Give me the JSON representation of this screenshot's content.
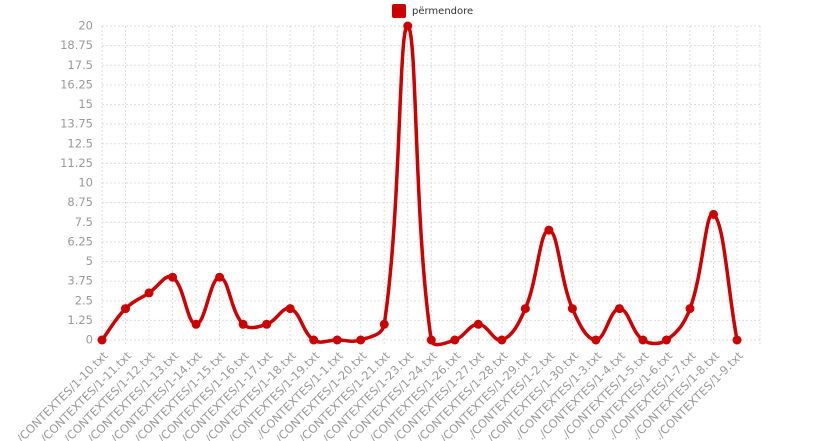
{
  "chart_data": {
    "type": "line",
    "categories": [
      "./CONTEXTES/1-10.txt",
      "./CONTEXTES/1-11.txt",
      "./CONTEXTES/1-12.txt",
      "./CONTEXTES/1-13.txt",
      "./CONTEXTES/1-14.txt",
      "./CONTEXTES/1-15.txt",
      "./CONTEXTES/1-16.txt",
      "./CONTEXTES/1-17.txt",
      "./CONTEXTES/1-18.txt",
      "./CONTEXTES/1-19.txt",
      "./CONTEXTES/1-1.txt",
      "./CONTEXTES/1-20.txt",
      "./CONTEXTES/1-21.txt",
      "./CONTEXTES/1-23.txt",
      "./CONTEXTES/1-24.txt",
      "./CONTEXTES/1-26.txt",
      "./CONTEXTES/1-27.txt",
      "./CONTEXTES/1-28.txt",
      "./CONTEXTES/1-29.txt",
      "./CONTEXTES/1-2.txt",
      "./CONTEXTES/1-30.txt",
      "./CONTEXTES/1-3.txt",
      "./CONTEXTES/1-4.txt",
      "./CONTEXTES/1-5.txt",
      "./CONTEXTES/1-6.txt",
      "./CONTEXTES/1-7.txt",
      "./CONTEXTES/1-8.txt",
      "./CONTEXTES/1-9.txt"
    ],
    "series": [
      {
        "name": "përmendore",
        "color": "#cc0000",
        "values": [
          0,
          2,
          3,
          4,
          1,
          4,
          1,
          1,
          2,
          0,
          0,
          0,
          1,
          20,
          0,
          0,
          1,
          0,
          2,
          7,
          2,
          0,
          2,
          0,
          0,
          2,
          8,
          0
        ]
      }
    ],
    "ylim": [
      0,
      20
    ],
    "yticks": [
      0,
      1.25,
      2.5,
      3.75,
      5,
      6.25,
      7.5,
      8.75,
      10,
      11.25,
      12.5,
      13.75,
      15,
      16.25,
      17.5,
      18.75,
      20
    ],
    "grid": true,
    "legend": "top"
  }
}
